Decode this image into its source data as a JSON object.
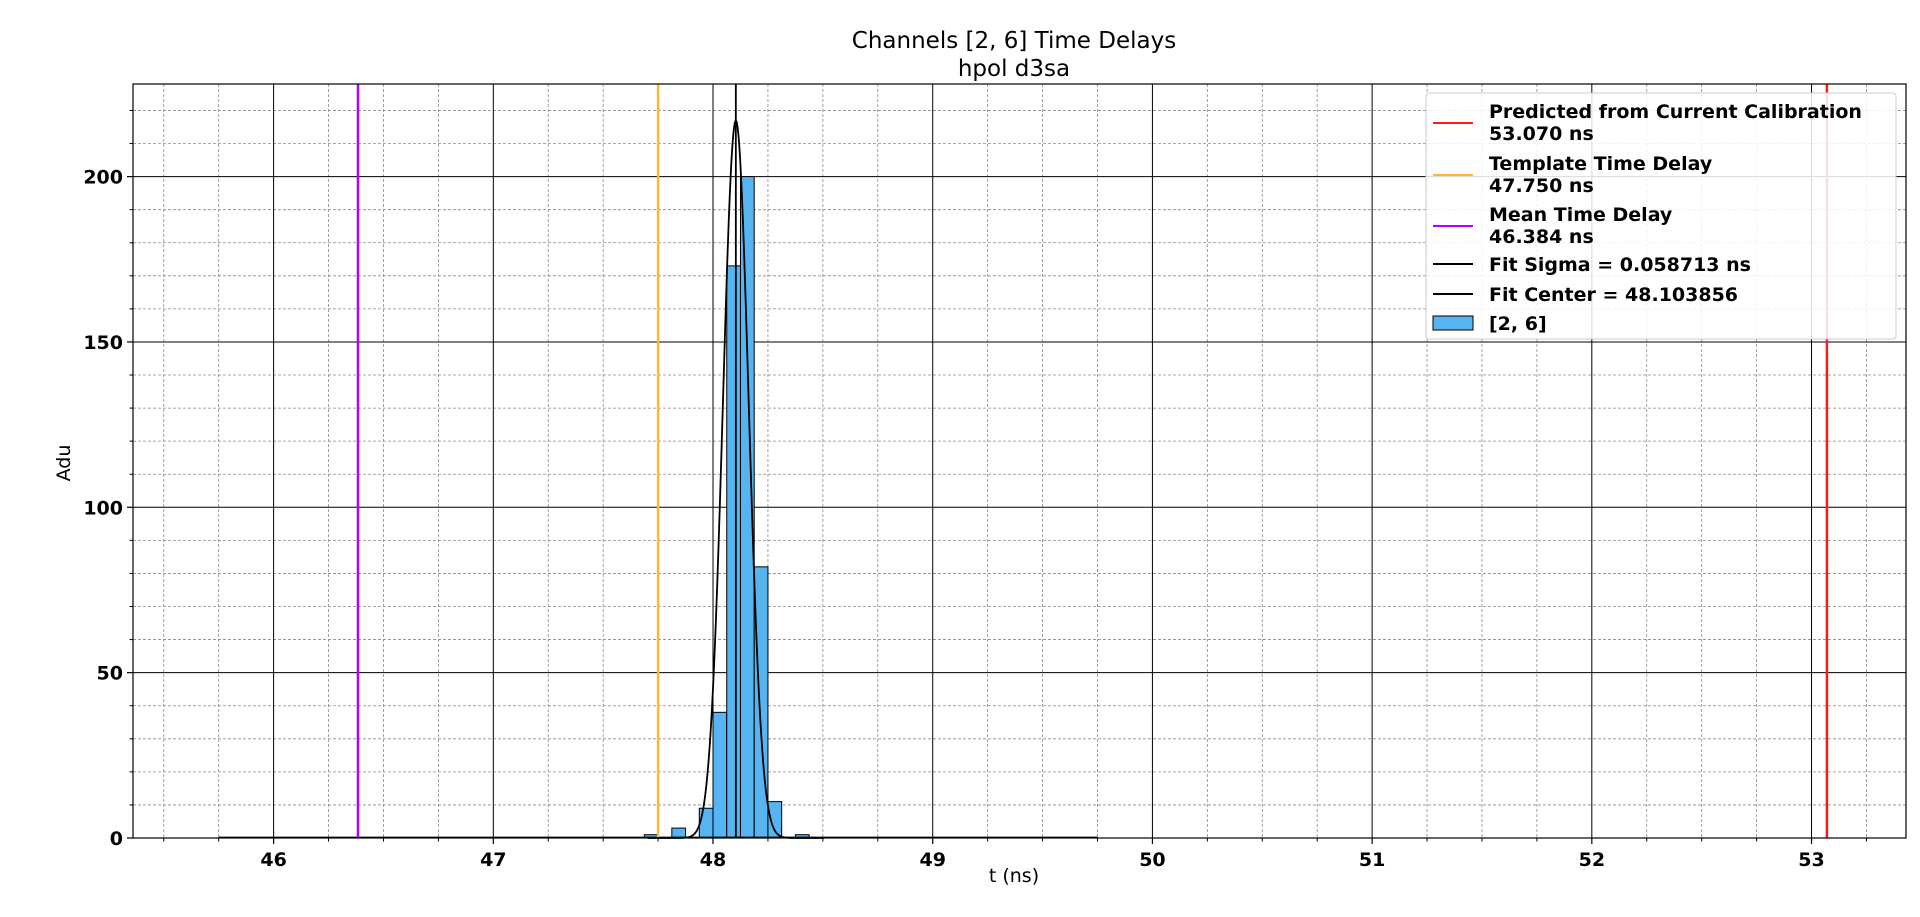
{
  "chart_data": {
    "type": "bar",
    "title": "Channels [2, 6] Time Delays",
    "subtitle": "hpol d3sa",
    "xlabel": "t (ns)",
    "ylabel": "Adu",
    "xlim": [
      45.36,
      53.43
    ],
    "ylim": [
      0,
      228
    ],
    "x_ticks": [
      46,
      47,
      48,
      49,
      50,
      51,
      52,
      53
    ],
    "y_ticks": [
      0,
      50,
      100,
      150,
      200
    ],
    "x_minor_step": 0.25,
    "y_minor_step": 10,
    "grid": true,
    "legend_position": "top-right",
    "colors": {
      "histogram_fill": "#56b4f0",
      "histogram_edge": "#000000",
      "predicted": "#ff1a1a",
      "template": "#ffb733",
      "mean": "#b400ff",
      "fit": "#000000"
    },
    "histogram": {
      "name": "[2, 6]",
      "range": [
        45.75,
        49.75
      ],
      "bin_width": 0.0625,
      "bins": [
        {
          "x0": 47.6875,
          "x1": 47.75,
          "count": 1
        },
        {
          "x0": 47.8125,
          "x1": 47.875,
          "count": 3
        },
        {
          "x0": 47.9375,
          "x1": 48.0,
          "count": 9
        },
        {
          "x0": 48.0,
          "x1": 48.0625,
          "count": 38
        },
        {
          "x0": 48.0625,
          "x1": 48.125,
          "count": 173
        },
        {
          "x0": 48.125,
          "x1": 48.1875,
          "count": 200
        },
        {
          "x0": 48.1875,
          "x1": 48.25,
          "count": 82
        },
        {
          "x0": 48.25,
          "x1": 48.3125,
          "count": 11
        },
        {
          "x0": 48.375,
          "x1": 48.4375,
          "count": 1
        }
      ]
    },
    "vertical_lines": [
      {
        "name": "Predicted from Current Calibration",
        "value_label": "53.070 ns",
        "x": 53.07,
        "color": "#ff1a1a"
      },
      {
        "name": "Template Time Delay",
        "value_label": "47.750 ns",
        "x": 47.75,
        "color": "#ffb733"
      },
      {
        "name": "Mean Time Delay",
        "value_label": "46.384 ns",
        "x": 46.384,
        "color": "#b400ff"
      }
    ],
    "fit": {
      "sigma_label": "Fit Sigma = 0.058713 ns",
      "center_label": "Fit Center = 48.103856",
      "center": 48.103856,
      "sigma": 0.058713,
      "amplitude": 217,
      "center_line_x": 48.103856
    },
    "legend": [
      {
        "line1": "Predicted from Current Calibration",
        "line2": "53.070 ns",
        "color": "#ff1a1a",
        "kind": "line"
      },
      {
        "line1": "Template Time Delay",
        "line2": "47.750 ns",
        "color": "#ffb733",
        "kind": "line"
      },
      {
        "line1": "Mean Time Delay",
        "line2": "46.384 ns",
        "color": "#b400ff",
        "kind": "line"
      },
      {
        "line1": "Fit Sigma = 0.058713 ns",
        "line2": "",
        "color": "#000000",
        "kind": "line"
      },
      {
        "line1": "Fit Center = 48.103856",
        "line2": "",
        "color": "#000000",
        "kind": "line"
      },
      {
        "line1": "[2, 6]",
        "line2": "",
        "color": "#56b4f0",
        "kind": "patch"
      }
    ]
  }
}
